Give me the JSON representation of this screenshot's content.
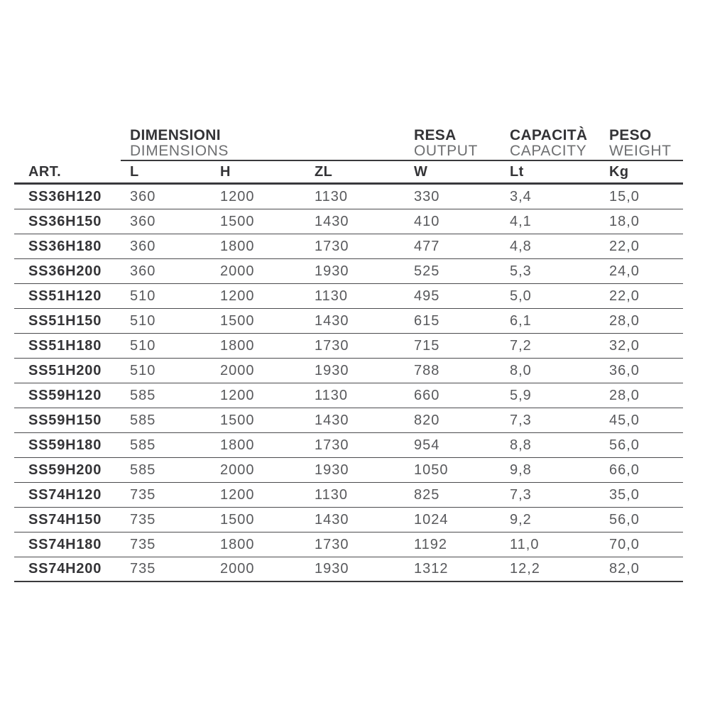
{
  "colors": {
    "background": "#ffffff",
    "dark_text": "#343437",
    "subtitle_text": "#6e6f71",
    "value_text": "#58595c",
    "rule_heavy": "#39393c",
    "rule_light": "#4b4b4e"
  },
  "table": {
    "art_header": "ART.",
    "column_groups": [
      {
        "title": "DIMENSIONI",
        "subtitle": "DIMENSIONS",
        "columns": [
          "L",
          "H",
          "ZL"
        ]
      },
      {
        "title": "RESA",
        "subtitle": "OUTPUT",
        "columns": [
          "W"
        ]
      },
      {
        "title": "CAPACITÀ",
        "subtitle": "CAPACITY",
        "columns": [
          "Lt"
        ]
      },
      {
        "title": "PESO",
        "subtitle": "WEIGHT",
        "columns": [
          "Kg"
        ]
      }
    ],
    "unit_headers": [
      "L",
      "H",
      "ZL",
      "W",
      "Lt",
      "Kg"
    ],
    "rows": [
      {
        "art": "SS36H120",
        "values": [
          "360",
          "1200",
          "1130",
          "330",
          "3,4",
          "15,0"
        ]
      },
      {
        "art": "SS36H150",
        "values": [
          "360",
          "1500",
          "1430",
          "410",
          "4,1",
          "18,0"
        ]
      },
      {
        "art": "SS36H180",
        "values": [
          "360",
          "1800",
          "1730",
          "477",
          "4,8",
          "22,0"
        ]
      },
      {
        "art": "SS36H200",
        "values": [
          "360",
          "2000",
          "1930",
          "525",
          "5,3",
          "24,0"
        ]
      },
      {
        "art": "SS51H120",
        "values": [
          "510",
          "1200",
          "1130",
          "495",
          "5,0",
          "22,0"
        ]
      },
      {
        "art": "SS51H150",
        "values": [
          "510",
          "1500",
          "1430",
          "615",
          "6,1",
          "28,0"
        ]
      },
      {
        "art": "SS51H180",
        "values": [
          "510",
          "1800",
          "1730",
          "715",
          "7,2",
          "32,0"
        ]
      },
      {
        "art": "SS51H200",
        "values": [
          "510",
          "2000",
          "1930",
          "788",
          "8,0",
          "36,0"
        ]
      },
      {
        "art": "SS59H120",
        "values": [
          "585",
          "1200",
          "1130",
          "660",
          "5,9",
          "28,0"
        ]
      },
      {
        "art": "SS59H150",
        "values": [
          "585",
          "1500",
          "1430",
          "820",
          "7,3",
          "45,0"
        ]
      },
      {
        "art": "SS59H180",
        "values": [
          "585",
          "1800",
          "1730",
          "954",
          "8,8",
          "56,0"
        ]
      },
      {
        "art": "SS59H200",
        "values": [
          "585",
          "2000",
          "1930",
          "1050",
          "9,8",
          "66,0"
        ]
      },
      {
        "art": "SS74H120",
        "values": [
          "735",
          "1200",
          "1130",
          "825",
          "7,3",
          "35,0"
        ]
      },
      {
        "art": "SS74H150",
        "values": [
          "735",
          "1500",
          "1430",
          "1024",
          "9,2",
          "56,0"
        ]
      },
      {
        "art": "SS74H180",
        "values": [
          "735",
          "1800",
          "1730",
          "1192",
          "11,0",
          "70,0"
        ]
      },
      {
        "art": "SS74H200",
        "values": [
          "735",
          "2000",
          "1930",
          "1312",
          "12,2",
          "82,0"
        ]
      }
    ]
  }
}
